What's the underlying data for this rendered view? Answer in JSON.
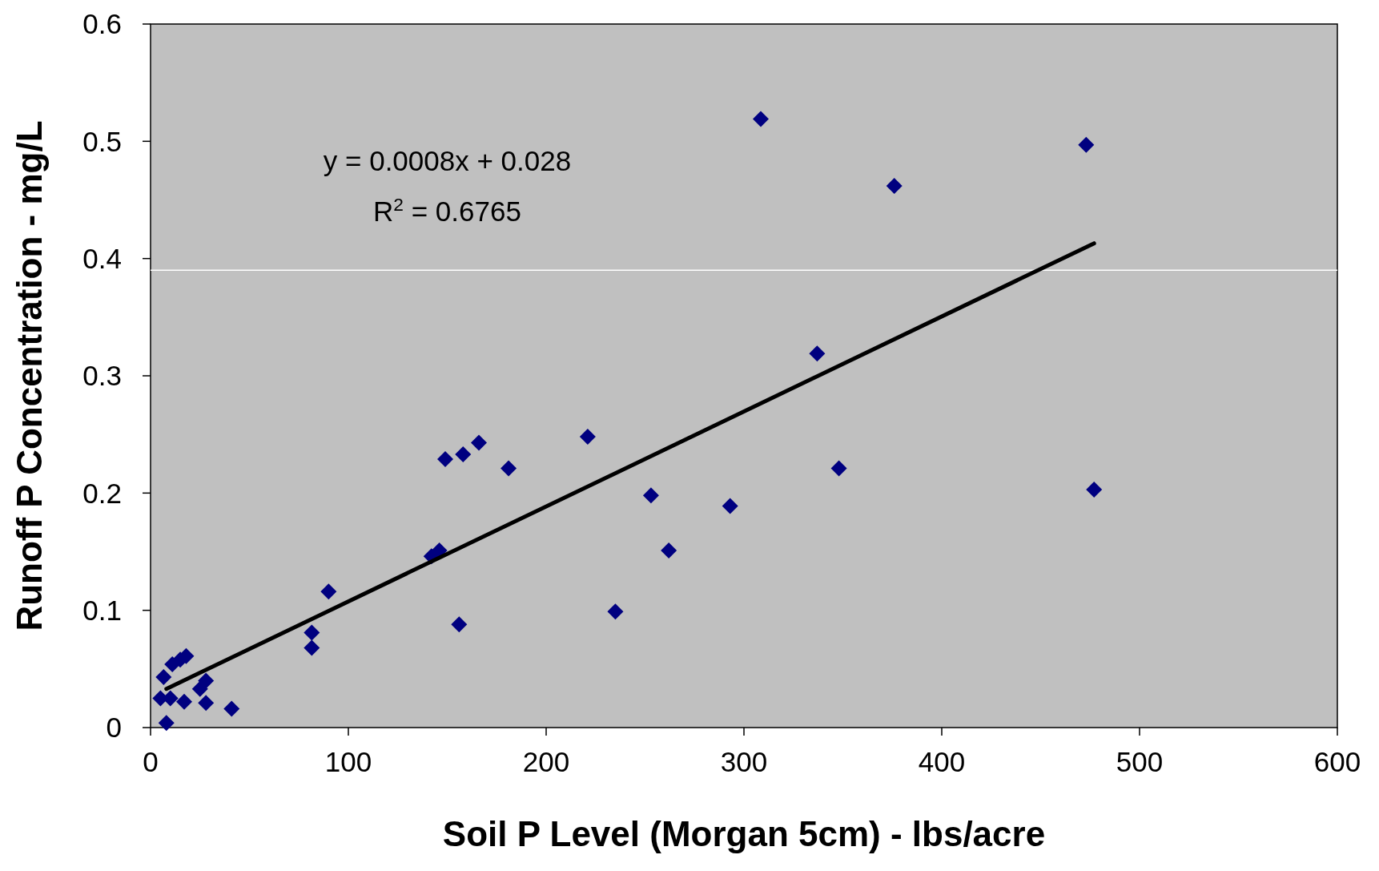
{
  "chart_data": {
    "type": "scatter",
    "xlabel": "Soil P Level (Morgan 5cm) - lbs/acre",
    "ylabel": "Runoff P Concentration - mg/L",
    "xlim": [
      0,
      600
    ],
    "xticks": [
      0,
      100,
      200,
      300,
      400,
      500,
      600
    ],
    "ylim": [
      0,
      0.6
    ],
    "yticks": [
      0,
      0.1,
      0.2,
      0.3,
      0.4,
      0.5,
      0.6
    ],
    "grid": false,
    "series": [
      {
        "marker": "diamond",
        "color": "#000080",
        "x": [
          6.6,
          8,
          5,
          10,
          11,
          15,
          18,
          17,
          25,
          28,
          28,
          41,
          81.5,
          81.5,
          90,
          142,
          146,
          149,
          156,
          158,
          166,
          181,
          221,
          235,
          253,
          262,
          293,
          308.5,
          337,
          348,
          376,
          473,
          477
        ],
        "values": [
          0.043,
          0.004,
          0.025,
          0.025,
          0.054,
          0.058,
          0.061,
          0.022,
          0.033,
          0.04,
          0.021,
          0.016,
          0.081,
          0.068,
          0.116,
          0.146,
          0.151,
          0.229,
          0.088,
          0.233,
          0.243,
          0.221,
          0.248,
          0.099,
          0.198,
          0.151,
          0.189,
          0.519,
          0.319,
          0.221,
          0.462,
          0.497,
          0.203
        ]
      },
      {
        "type": "line",
        "color": "#000000",
        "x": [
          8,
          477
        ],
        "values": [
          0.033,
          0.413
        ]
      }
    ],
    "ref_lines": [
      {
        "axis": "y",
        "value": 0.39,
        "color": "#ffffff"
      }
    ],
    "annotations": [
      "y = 0.0008x + 0.028",
      "R$^{2}$ = 0.6765"
    ]
  }
}
